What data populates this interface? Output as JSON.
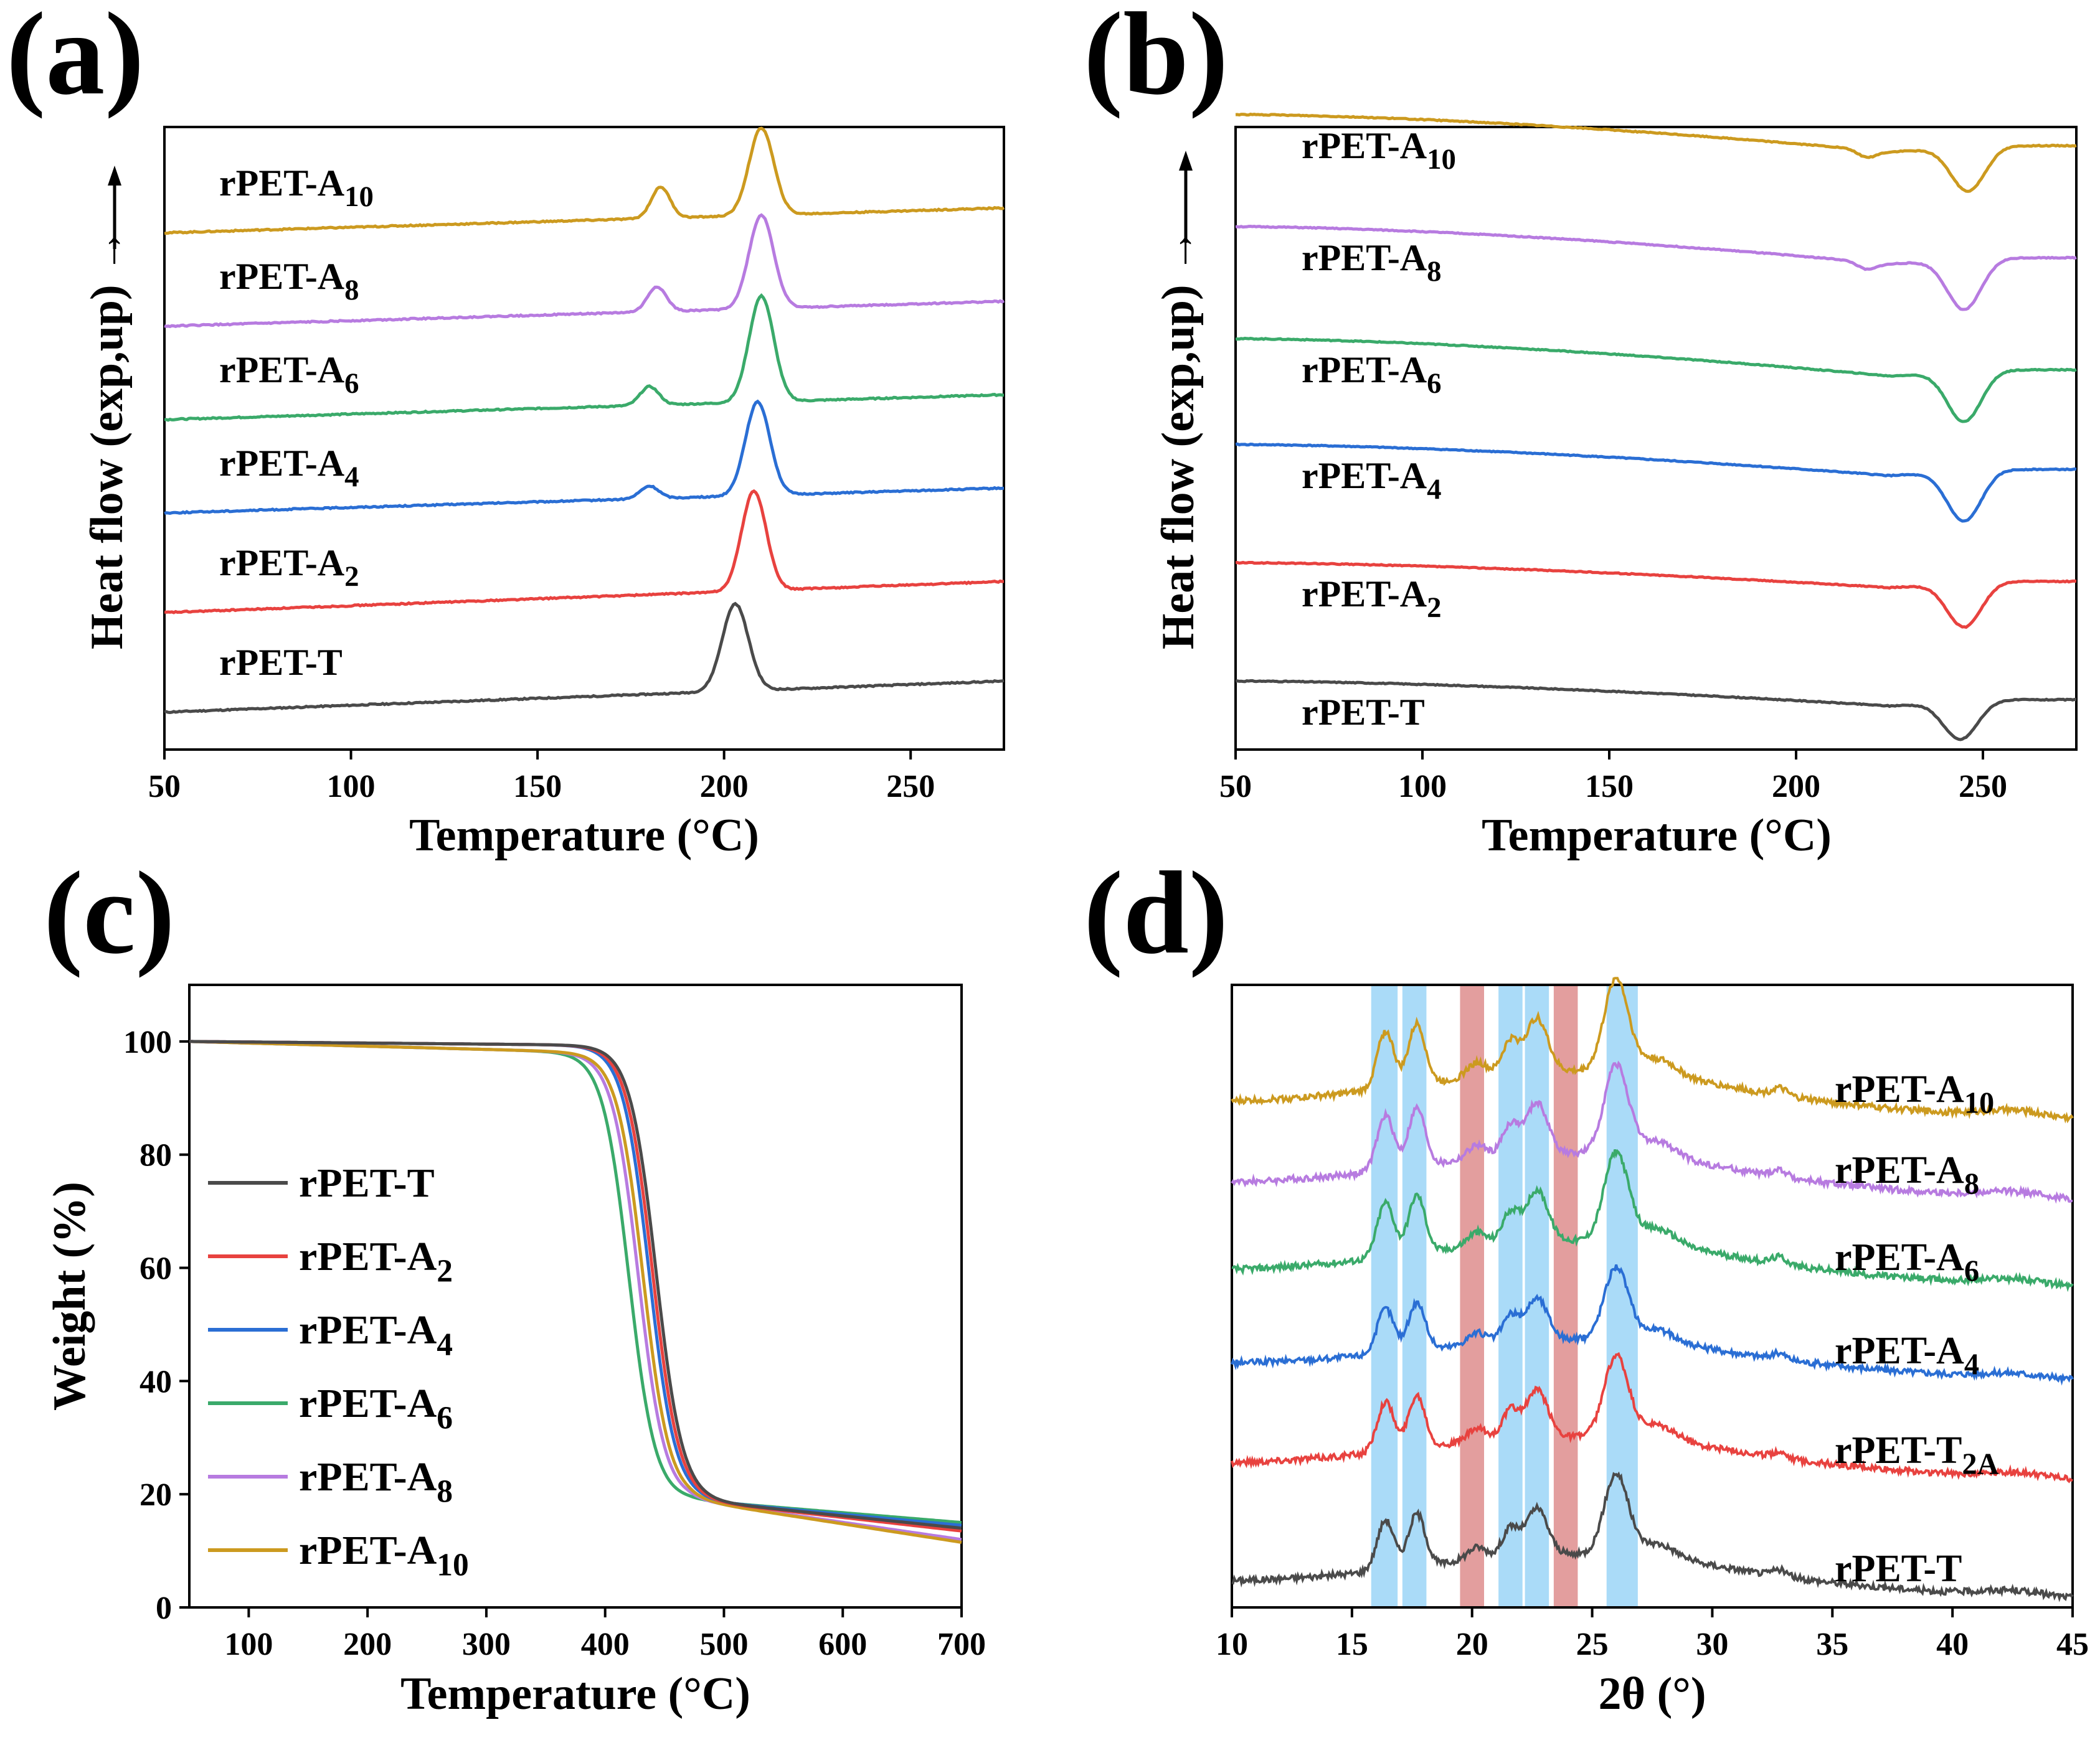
{
  "colors": {
    "rPET-T": "#4a4a4a",
    "rPET-A2": "#e8423f",
    "rPET-A4": "#2a6ed4",
    "rPET-A6": "#3aaa6a",
    "rPET-A8": "#b77be0",
    "rPET-A10": "#cc9a1f",
    "crystal_band": "#8dcff5",
    "red_band": "#d97d7d"
  },
  "chart_data": [
    {
      "panel": "(a)",
      "type": "line",
      "title": "",
      "xlabel": "Temperature (°C)",
      "ylabel": "Heat flow (exp,up) →",
      "xlim": [
        50,
        275
      ],
      "xticks": [
        "50",
        "100",
        "150",
        "200",
        "250"
      ],
      "yticks": [],
      "series": [
        {
          "name": "rPET-T",
          "label_main": "rPET-T",
          "label_sub": "",
          "color_key": "rPET-T",
          "baseline": [
            0.06,
            0.11
          ],
          "peaks": [
            {
              "x": 203,
              "h": 0.14,
              "w": 3.5
            }
          ]
        },
        {
          "name": "rPET-A2",
          "label_main": "rPET-A",
          "label_sub": "2",
          "color_key": "rPET-A2",
          "baseline": [
            0.22,
            0.27
          ],
          "peaks": [
            {
              "x": 208,
              "h": 0.16,
              "w": 3.3
            }
          ]
        },
        {
          "name": "rPET-A4",
          "label_main": "rPET-A",
          "label_sub": "4",
          "color_key": "rPET-A4",
          "baseline": [
            0.38,
            0.42
          ],
          "peaks": [
            {
              "x": 180,
              "h": 0.02,
              "w": 2.5
            },
            {
              "x": 209,
              "h": 0.15,
              "w": 3.3
            }
          ]
        },
        {
          "name": "rPET-A6",
          "label_main": "rPET-A",
          "label_sub": "6",
          "color_key": "rPET-A6",
          "baseline": [
            0.53,
            0.57
          ],
          "peaks": [
            {
              "x": 180,
              "h": 0.03,
              "w": 2.5
            },
            {
              "x": 210,
              "h": 0.17,
              "w": 3.3
            }
          ]
        },
        {
          "name": "rPET-A8",
          "label_main": "rPET-A",
          "label_sub": "8",
          "color_key": "rPET-A8",
          "baseline": [
            0.68,
            0.72
          ],
          "peaks": [
            {
              "x": 182,
              "h": 0.04,
              "w": 2.5
            },
            {
              "x": 210,
              "h": 0.15,
              "w": 3.3
            }
          ]
        },
        {
          "name": "rPET-A10",
          "label_main": "rPET-A",
          "label_sub": "10",
          "color_key": "rPET-A10",
          "baseline": [
            0.83,
            0.87
          ],
          "peaks": [
            {
              "x": 183,
              "h": 0.05,
              "w": 2.5
            },
            {
              "x": 210,
              "h": 0.14,
              "w": 3.3
            }
          ]
        }
      ]
    },
    {
      "panel": "(b)",
      "type": "line",
      "title": "",
      "xlabel": "Temperature (°C)",
      "ylabel": "Heat flow (exp,up) →",
      "xlim": [
        50,
        275
      ],
      "xticks": [
        "50",
        "100",
        "150",
        "200",
        "250"
      ],
      "yticks": [],
      "series": [
        {
          "name": "rPET-T",
          "label_main": "rPET-T",
          "label_sub": "",
          "color_key": "rPET-T",
          "start": 0.11,
          "pre": 0.07,
          "post": 0.08,
          "dip": {
            "x": 244,
            "depth": 0.06
          }
        },
        {
          "name": "rPET-A2",
          "label_main": "rPET-A",
          "label_sub": "2",
          "color_key": "rPET-A2",
          "start": 0.3,
          "pre": 0.26,
          "post": 0.27,
          "dip": {
            "x": 245,
            "depth": 0.07
          }
        },
        {
          "name": "rPET-A4",
          "label_main": "rPET-A",
          "label_sub": "4",
          "color_key": "rPET-A4",
          "start": 0.49,
          "pre": 0.44,
          "post": 0.45,
          "dip": {
            "x": 245,
            "depth": 0.08
          }
        },
        {
          "name": "rPET-A6",
          "label_main": "rPET-A",
          "label_sub": "6",
          "color_key": "rPET-A6",
          "start": 0.66,
          "pre": 0.6,
          "post": 0.61,
          "dip": {
            "x": 245,
            "depth": 0.08
          }
        },
        {
          "name": "rPET-A8",
          "label_main": "rPET-A",
          "label_sub": "8",
          "color_key": "rPET-A8",
          "start": 0.84,
          "pre": 0.78,
          "post": 0.79,
          "dip": {
            "x": 245,
            "depth": 0.08
          }
        },
        {
          "name": "rPET-A10",
          "label_main": "rPET-A",
          "label_sub": "10",
          "color_key": "rPET-A10",
          "start": 1.02,
          "pre": 0.96,
          "post": 0.97,
          "dip": {
            "x": 246,
            "depth": 0.07
          }
        }
      ]
    },
    {
      "panel": "(c)",
      "type": "line",
      "title": "",
      "xlabel": "Temperature (°C)",
      "ylabel": "Weight (%)",
      "xlim": [
        50,
        700
      ],
      "ylim": [
        0,
        110
      ],
      "xticks": [
        100,
        200,
        300,
        400,
        500,
        600,
        700
      ],
      "yticks": [
        0,
        20,
        40,
        60,
        80,
        100
      ],
      "legend_position": "middle-left",
      "series": [
        {
          "name": "rPET-T",
          "label_main": "rPET-T",
          "label_sub": "",
          "color_key": "rPET-T",
          "onset_temp": 443,
          "residue": 14.0
        },
        {
          "name": "rPET-A2",
          "label_main": "rPET-A",
          "label_sub": "2",
          "color_key": "rPET-A2",
          "onset_temp": 440,
          "residue": 13.5
        },
        {
          "name": "rPET-A4",
          "label_main": "rPET-A",
          "label_sub": "4",
          "color_key": "rPET-A4",
          "onset_temp": 437,
          "residue": 14.5
        },
        {
          "name": "rPET-A6",
          "label_main": "rPET-A",
          "label_sub": "6",
          "color_key": "rPET-A6",
          "onset_temp": 420,
          "residue": 15.0
        },
        {
          "name": "rPET-A8",
          "label_main": "rPET-A",
          "label_sub": "8",
          "color_key": "rPET-A8",
          "onset_temp": 428,
          "residue": 12.0
        },
        {
          "name": "rPET-A10",
          "label_main": "rPET-A",
          "label_sub": "10",
          "color_key": "rPET-A10",
          "onset_temp": 432,
          "residue": 11.5
        }
      ]
    },
    {
      "panel": "(d)",
      "type": "line",
      "title": "",
      "xlabel": "2θ (°)",
      "ylabel": "",
      "xlim": [
        10,
        45
      ],
      "xticks": [
        10,
        15,
        20,
        25,
        30,
        35,
        40,
        45
      ],
      "yticks": [],
      "blue_bands": [
        [
          15.8,
          16.9
        ],
        [
          17.1,
          18.1
        ],
        [
          21.1,
          22.1
        ],
        [
          22.2,
          23.2
        ],
        [
          25.6,
          26.9
        ]
      ],
      "red_bands": [
        [
          19.5,
          20.5
        ],
        [
          23.4,
          24.4
        ]
      ],
      "series": [
        {
          "name": "rPET-T",
          "label_main": "rPET-T",
          "label_sub": "",
          "color_key": "rPET-T",
          "offset": 0.02,
          "scale": 1.0
        },
        {
          "name": "rPET-T2A",
          "label_main": "rPET-T",
          "label_sub": "2A",
          "color_key": "rPET-A2",
          "offset": 0.21,
          "scale": 1.0
        },
        {
          "name": "rPET-A4",
          "label_main": "rPET-A",
          "label_sub": "4",
          "color_key": "rPET-A4",
          "offset": 0.37,
          "scale": 0.9
        },
        {
          "name": "rPET-A6",
          "label_main": "rPET-A",
          "label_sub": "6",
          "color_key": "rPET-A6",
          "offset": 0.52,
          "scale": 1.1
        },
        {
          "name": "rPET-A8",
          "label_main": "rPET-A",
          "label_sub": "8",
          "color_key": "rPET-A8",
          "offset": 0.66,
          "scale": 1.1
        },
        {
          "name": "rPET-A10",
          "label_main": "rPET-A",
          "label_sub": "10",
          "color_key": "rPET-A10",
          "offset": 0.79,
          "scale": 1.15
        }
      ]
    }
  ]
}
